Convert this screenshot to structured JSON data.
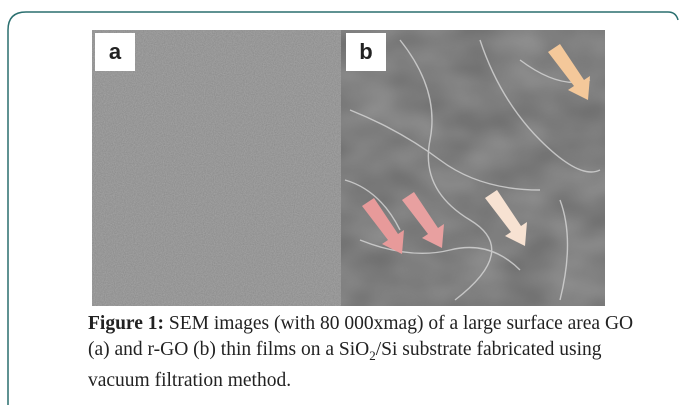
{
  "figure": {
    "panels": [
      {
        "label": "a"
      },
      {
        "label": "b"
      }
    ],
    "caption": {
      "label": "Figure 1:",
      "text_before": " SEM images (with 80 000xmag) of a large surface area GO (a) and r-GO (b) thin films on a SiO",
      "subscript": "2",
      "text_after": "/Si substrate fabricated using vacuum filtration method."
    }
  }
}
